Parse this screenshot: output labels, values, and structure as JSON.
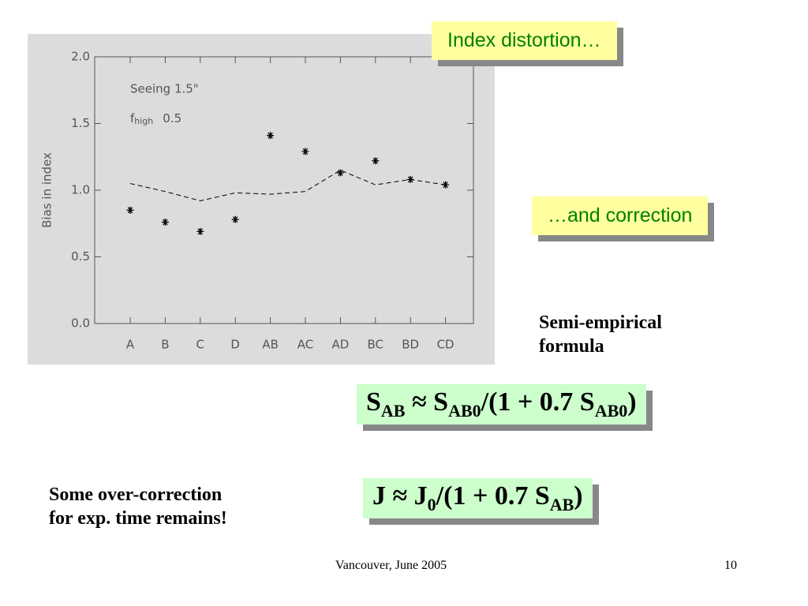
{
  "chart_data": {
    "type": "line",
    "ylabel": "Bias in index",
    "annotations": [
      [
        "Seeing 1.5\""
      ],
      [
        "f",
        "high",
        "0.5"
      ]
    ],
    "categories": [
      "A",
      "B",
      "C",
      "D",
      "AB",
      "AC",
      "AD",
      "BC",
      "BD",
      "CD"
    ],
    "series": [
      {
        "color": "#000000",
        "marker": "asterisk",
        "values": [
          0.85,
          0.76,
          0.69,
          0.78,
          1.41,
          1.29,
          1.13,
          1.22,
          1.08,
          1.04
        ]
      },
      {
        "color": "#000000",
        "linestyle": "dashed",
        "values": [
          1.05,
          0.99,
          0.92,
          0.98,
          0.97,
          0.99,
          1.15,
          1.04,
          1.08,
          1.04
        ]
      }
    ],
    "ylim": [
      0,
      2
    ],
    "yticks": [
      {
        "value": 0,
        "label": "0.0"
      },
      0.5,
      {
        "value": 1,
        "label": "1.0"
      },
      1.5,
      {
        "value": 2,
        "label": "2.0"
      }
    ]
  },
  "boxes": [
    "Index distortion…",
    "…and correction"
  ],
  "label": [
    "Semi-empirical",
    "formula"
  ],
  "formulas": [
    [
      "S",
      "AB",
      " ≈ S",
      "AB0",
      "/(1 + 0.7 S",
      "AB0",
      ")"
    ],
    [
      "J ≈ J",
      "0",
      "/(1 + 0.7 S",
      "AB",
      ")"
    ]
  ],
  "note": [
    "Some over-correction",
    "for exp. time remains!"
  ],
  "footer": {
    "left": "Vancouver, June 2005",
    "page": "10"
  }
}
